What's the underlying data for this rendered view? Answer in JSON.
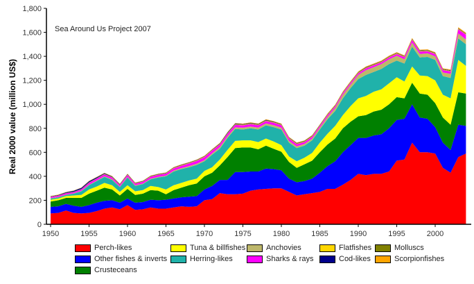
{
  "chart_data": {
    "type": "area",
    "stacked": true,
    "title": "",
    "annotation": "Sea Around Us Project 2007",
    "xlabel": "",
    "ylabel": "Real 2000 value (million US$)",
    "xlim": [
      1950,
      2004
    ],
    "ylim": [
      0,
      1800
    ],
    "x_ticks": [
      "1950",
      "1955",
      "1960",
      "1965",
      "1970",
      "1975",
      "1980",
      "1985",
      "1990",
      "1995",
      "2000"
    ],
    "y_ticks": [
      "0",
      "200",
      "400",
      "600",
      "800",
      "1,000",
      "1,200",
      "1,400",
      "1,600",
      "1,800"
    ],
    "y_tick_values": [
      0,
      200,
      400,
      600,
      800,
      1000,
      1200,
      1400,
      1600,
      1800
    ],
    "x_tick_values": [
      1950,
      1955,
      1960,
      1965,
      1970,
      1975,
      1980,
      1985,
      1990,
      1995,
      2000
    ],
    "grid": false,
    "legend_position": "bottom",
    "x": [
      1950,
      1951,
      1952,
      1953,
      1954,
      1955,
      1956,
      1957,
      1958,
      1959,
      1960,
      1961,
      1962,
      1963,
      1964,
      1965,
      1966,
      1967,
      1968,
      1969,
      1970,
      1971,
      1972,
      1973,
      1974,
      1975,
      1976,
      1977,
      1978,
      1979,
      1980,
      1981,
      1982,
      1983,
      1984,
      1985,
      1986,
      1987,
      1988,
      1989,
      1990,
      1991,
      1992,
      1993,
      1994,
      1995,
      1996,
      1997,
      1998,
      1999,
      2000,
      2001,
      2002,
      2003,
      2004
    ],
    "series": [
      {
        "name": "Perch-likes",
        "color": "#ff0000",
        "values": [
          90,
          95,
          115,
          95,
          90,
          95,
          110,
          130,
          140,
          125,
          160,
          120,
          125,
          140,
          130,
          130,
          140,
          150,
          145,
          150,
          200,
          210,
          260,
          250,
          250,
          255,
          280,
          290,
          295,
          300,
          300,
          270,
          240,
          250,
          260,
          270,
          295,
          295,
          330,
          370,
          420,
          410,
          420,
          420,
          440,
          530,
          540,
          680,
          600,
          600,
          590,
          470,
          430,
          560,
          590
        ]
      },
      {
        "name": "Other fishes & inverts",
        "color": "#0000ff",
        "values": [
          55,
          55,
          55,
          60,
          55,
          65,
          70,
          65,
          60,
          55,
          55,
          60,
          60,
          65,
          70,
          75,
          75,
          75,
          85,
          85,
          90,
          110,
          110,
          120,
          185,
          180,
          160,
          150,
          170,
          160,
          150,
          110,
          110,
          110,
          120,
          160,
          190,
          230,
          270,
          290,
          300,
          310,
          320,
          330,
          360,
          340,
          340,
          320,
          290,
          280,
          220,
          210,
          190,
          270,
          230
        ]
      },
      {
        "name": "Crusteceans",
        "color": "#008000",
        "values": [
          45,
          50,
          50,
          65,
          75,
          95,
          100,
          110,
          90,
          60,
          80,
          65,
          70,
          80,
          80,
          45,
          70,
          80,
          95,
          105,
          110,
          110,
          120,
          190,
          200,
          205,
          200,
          185,
          190,
          170,
          155,
          140,
          120,
          140,
          150,
          170,
          180,
          190,
          200,
          195,
          180,
          190,
          200,
          205,
          200,
          190,
          170,
          180,
          200,
          200,
          200,
          210,
          210,
          270,
          270
        ]
      },
      {
        "name": "Tuna & billfishes",
        "color": "#ffff00",
        "values": [
          15,
          15,
          15,
          20,
          25,
          35,
          35,
          40,
          35,
          30,
          30,
          30,
          30,
          35,
          30,
          40,
          40,
          40,
          40,
          40,
          45,
          45,
          50,
          60,
          60,
          60,
          60,
          60,
          60,
          60,
          55,
          45,
          55,
          55,
          65,
          80,
          90,
          105,
          110,
          130,
          150,
          160,
          165,
          170,
          175,
          165,
          140,
          135,
          150,
          155,
          190,
          190,
          220,
          270,
          230
        ]
      },
      {
        "name": "Herring-likes",
        "color": "#20b2aa",
        "values": [
          10,
          10,
          10,
          15,
          30,
          35,
          45,
          50,
          45,
          40,
          65,
          45,
          50,
          55,
          80,
          110,
          115,
          115,
          110,
          115,
          80,
          105,
          90,
          100,
          100,
          90,
          100,
          105,
          110,
          120,
          130,
          115,
          110,
          100,
          105,
          110,
          120,
          125,
          140,
          150,
          160,
          175,
          165,
          170,
          160,
          140,
          150,
          165,
          150,
          160,
          170,
          155,
          170,
          180,
          180
        ]
      },
      {
        "name": "Anchovies",
        "color": "#bdb76b",
        "values": [
          3,
          3,
          3,
          3,
          4,
          5,
          5,
          6,
          6,
          5,
          6,
          5,
          5,
          6,
          6,
          6,
          8,
          8,
          10,
          10,
          10,
          12,
          14,
          14,
          14,
          15,
          15,
          16,
          16,
          16,
          16,
          15,
          15,
          15,
          15,
          15,
          20,
          25,
          30,
          30,
          35,
          40,
          40,
          40,
          40,
          40,
          35,
          35,
          30,
          30,
          30,
          30,
          35,
          40,
          40
        ]
      },
      {
        "name": "Sharks & rays",
        "color": "#ff00ff",
        "values": [
          10,
          10,
          10,
          10,
          12,
          15,
          15,
          15,
          14,
          12,
          15,
          13,
          14,
          15,
          16,
          16,
          18,
          20,
          22,
          24,
          25,
          22,
          20,
          20,
          20,
          20,
          20,
          20,
          20,
          20,
          20,
          20,
          18,
          16,
          15,
          14,
          14,
          14,
          14,
          14,
          14,
          15,
          15,
          15,
          15,
          15,
          18,
          22,
          20,
          18,
          20,
          20,
          20,
          35,
          40
        ]
      },
      {
        "name": "Flatfishes",
        "color": "#ffd700",
        "values": [
          1,
          1,
          1,
          1,
          1,
          2,
          2,
          2,
          2,
          2,
          2,
          2,
          2,
          2,
          2,
          2,
          3,
          3,
          3,
          3,
          3,
          3,
          3,
          3,
          3,
          3,
          3,
          3,
          3,
          3,
          3,
          3,
          3,
          3,
          3,
          3,
          3,
          3,
          3,
          3,
          3,
          3,
          3,
          3,
          3,
          3,
          3,
          3,
          3,
          3,
          3,
          3,
          3,
          3,
          3
        ]
      },
      {
        "name": "Molluscs",
        "color": "#808000",
        "values": [
          2,
          2,
          2,
          2,
          2,
          2,
          2,
          2,
          2,
          2,
          2,
          2,
          2,
          2,
          2,
          2,
          2,
          2,
          2,
          2,
          2,
          2,
          3,
          3,
          3,
          3,
          3,
          3,
          3,
          3,
          3,
          3,
          3,
          3,
          3,
          3,
          3,
          3,
          3,
          3,
          3,
          3,
          3,
          3,
          3,
          3,
          3,
          3,
          3,
          3,
          3,
          3,
          3,
          3,
          3
        ]
      },
      {
        "name": "Cod-likes",
        "color": "#00008b",
        "values": [
          3,
          4,
          6,
          8,
          10,
          10,
          8,
          6,
          5,
          4,
          4,
          3,
          3,
          3,
          3,
          3,
          3,
          3,
          3,
          3,
          3,
          3,
          4,
          5,
          5,
          4,
          4,
          4,
          4,
          4,
          3,
          3,
          3,
          3,
          3,
          3,
          3,
          3,
          3,
          3,
          3,
          3,
          3,
          3,
          3,
          3,
          3,
          3,
          3,
          3,
          3,
          3,
          3,
          3,
          3
        ]
      },
      {
        "name": "Scorpionfishes",
        "color": "#ffa500",
        "values": [
          2,
          2,
          2,
          2,
          2,
          3,
          3,
          3,
          3,
          3,
          3,
          3,
          3,
          3,
          3,
          3,
          3,
          3,
          3,
          3,
          3,
          4,
          4,
          4,
          4,
          4,
          4,
          4,
          4,
          4,
          4,
          4,
          4,
          4,
          4,
          4,
          5,
          5,
          5,
          5,
          6,
          6,
          6,
          6,
          6,
          6,
          6,
          6,
          6,
          6,
          6,
          6,
          6,
          8,
          8
        ]
      }
    ]
  },
  "legend": {
    "items": [
      {
        "label": "Perch-likes",
        "color": "#ff0000"
      },
      {
        "label": "Other fishes & inverts",
        "color": "#0000ff"
      },
      {
        "label": "Crusteceans",
        "color": "#008000"
      },
      {
        "label": "Tuna & billfishes",
        "color": "#ffff00"
      },
      {
        "label": "Herring-likes",
        "color": "#20b2aa"
      },
      {
        "label": "Anchovies",
        "color": "#bdb76b"
      },
      {
        "label": "Sharks & rays",
        "color": "#ff00ff"
      },
      {
        "label": "Flatfishes",
        "color": "#ffd700"
      },
      {
        "label": "Cod-likes",
        "color": "#00008b"
      },
      {
        "label": "Molluscs",
        "color": "#808000"
      },
      {
        "label": "Scorpionfishes",
        "color": "#ffa500"
      }
    ]
  }
}
